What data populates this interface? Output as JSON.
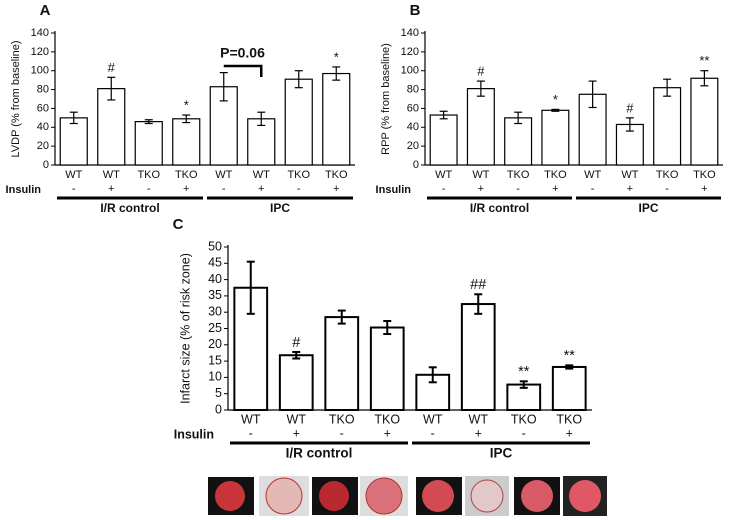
{
  "chart_data": [
    {
      "type": "bar",
      "panel": "A",
      "ylabel": "LVDP (% from baseline)",
      "ylim": [
        0,
        140
      ],
      "yticks": [
        0,
        20,
        40,
        60,
        80,
        100,
        120,
        140
      ],
      "row_label": "Insulin",
      "bracket": "P=0.06",
      "groups": [
        {
          "name": "I/R control",
          "categories": [
            "WT",
            "WT",
            "TKO",
            "TKO"
          ],
          "insulin": [
            "-",
            "+",
            "-",
            "+"
          ],
          "values": [
            50,
            81,
            46,
            49
          ],
          "errors": [
            6,
            12,
            2,
            4
          ],
          "markers": [
            null,
            "#",
            null,
            "*"
          ]
        },
        {
          "name": "IPC",
          "categories": [
            "WT",
            "WT",
            "TKO",
            "TKO"
          ],
          "insulin": [
            "-",
            "+",
            "-",
            "+"
          ],
          "values": [
            83,
            49,
            91,
            97
          ],
          "errors": [
            15,
            7,
            9,
            7
          ],
          "markers": [
            null,
            null,
            null,
            "*"
          ]
        }
      ]
    },
    {
      "type": "bar",
      "panel": "B",
      "ylabel": "RPP (% from baseline)",
      "ylim": [
        0,
        140
      ],
      "yticks": [
        0,
        20,
        40,
        60,
        80,
        100,
        120,
        140
      ],
      "row_label": "Insulin",
      "groups": [
        {
          "name": "I/R control",
          "categories": [
            "WT",
            "WT",
            "TKO",
            "TKO"
          ],
          "insulin": [
            "-",
            "+",
            "-",
            "+"
          ],
          "values": [
            53,
            81,
            50,
            58
          ],
          "errors": [
            4,
            8,
            6,
            1
          ],
          "markers": [
            null,
            "#",
            null,
            "*"
          ]
        },
        {
          "name": "IPC",
          "categories": [
            "WT",
            "WT",
            "TKO",
            "TKO"
          ],
          "insulin": [
            "-",
            "+",
            "-",
            "+"
          ],
          "values": [
            75,
            43,
            82,
            92
          ],
          "errors": [
            14,
            7,
            9,
            8
          ],
          "markers": [
            null,
            "#",
            null,
            "**"
          ]
        }
      ]
    },
    {
      "type": "bar",
      "panel": "C",
      "ylabel": "Infarct size (% of risk zone)",
      "ylim": [
        0,
        50
      ],
      "yticks": [
        0,
        5,
        10,
        15,
        20,
        25,
        30,
        35,
        40,
        45,
        50
      ],
      "row_label": "Insulin",
      "groups": [
        {
          "name": "I/R control",
          "categories": [
            "WT",
            "WT",
            "TKO",
            "TKO"
          ],
          "insulin": [
            "-",
            "+",
            "-",
            "+"
          ],
          "values": [
            37.5,
            16.8,
            28.5,
            25.3
          ],
          "errors": [
            8,
            1,
            2,
            2
          ],
          "markers": [
            null,
            "#",
            null,
            null
          ]
        },
        {
          "name": "IPC",
          "categories": [
            "WT",
            "WT",
            "TKO",
            "TKO"
          ],
          "insulin": [
            "-",
            "+",
            "-",
            "+"
          ],
          "values": [
            10.8,
            32.5,
            7.8,
            13.2
          ],
          "errors": [
            2.3,
            3,
            1,
            0.5
          ],
          "markers": [
            null,
            "##",
            "**",
            "**"
          ]
        }
      ]
    }
  ]
}
